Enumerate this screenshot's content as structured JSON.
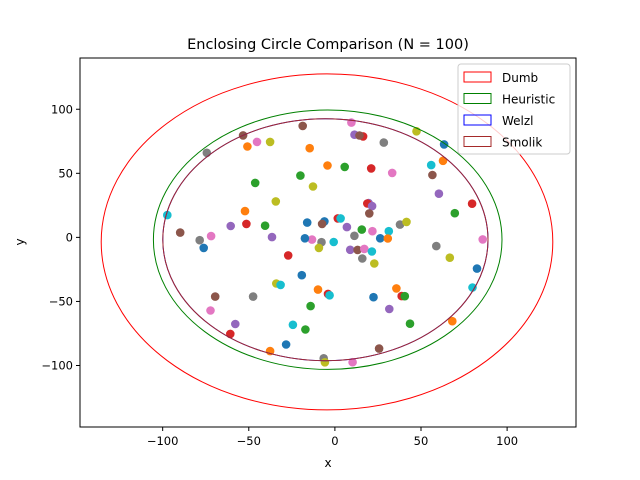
{
  "chart_data": {
    "type": "scatter",
    "title": "Enclosing Circle Comparison (N = 100)",
    "xlabel": "x",
    "ylabel": "y",
    "xlim": [
      -148,
      140
    ],
    "ylim": [
      -148,
      140
    ],
    "x_ticks": [
      -100,
      -50,
      0,
      50,
      100
    ],
    "x_tick_labels": [
      "−100",
      "−50",
      "0",
      "50",
      "100"
    ],
    "y_ticks": [
      -100,
      -50,
      0,
      50,
      100
    ],
    "y_tick_labels": [
      "−100",
      "−50",
      "0",
      "50",
      "100"
    ],
    "grid": false,
    "legend_position": "top-right",
    "circles": [
      {
        "name": "Dumb",
        "color": "#ff0000",
        "cx": -4.6,
        "cy": -3.5,
        "r": 131.1
      },
      {
        "name": "Heuristic",
        "color": "#008000",
        "cx": -4.2,
        "cy": -1.8,
        "r": 101.2
      },
      {
        "name": "Welzl",
        "color": "#0000ff",
        "cx": -5.5,
        "cy": -1.8,
        "r": 94.4
      },
      {
        "name": "Smolik",
        "color": "#a52a2a",
        "cx": -5.5,
        "cy": -1.8,
        "r": 94.4
      }
    ],
    "palette": [
      "#1f77b4",
      "#ff7f0e",
      "#2ca02c",
      "#d62728",
      "#9467bd",
      "#8c564b",
      "#e377c2",
      "#7f7f7f",
      "#bcbd22",
      "#17becf"
    ],
    "points": [
      [
        -6.1,
        12.5
      ],
      [
        -14.6,
        69.6
      ],
      [
        5.7,
        55.0
      ],
      [
        16.4,
        78.8
      ],
      [
        19.6,
        26.8
      ],
      [
        -53.3,
        79.6
      ],
      [
        -45.2,
        74.5
      ],
      [
        -74.4,
        66.0
      ],
      [
        -34.3,
        28.1
      ],
      [
        -97.3,
        17.4
      ],
      [
        -76.2,
        -8.2
      ],
      [
        -52.2,
        20.5
      ],
      [
        -40.5,
        9.1
      ],
      [
        -27.1,
        -14.1
      ],
      [
        -36.5,
        0.2
      ],
      [
        -18.7,
        87.0
      ],
      [
        9.6,
        89.6
      ],
      [
        28.4,
        74.0
      ],
      [
        47.4,
        82.8
      ],
      [
        55.9,
        56.4
      ],
      [
        63.4,
        72.6
      ],
      [
        62.8,
        59.8
      ],
      [
        69.6,
        18.9
      ],
      [
        79.7,
        26.3
      ],
      [
        60.4,
        34.1
      ],
      [
        56.6,
        48.7
      ],
      [
        85.8,
        -1.6
      ],
      [
        58.9,
        -6.8
      ],
      [
        66.7,
        -15.9
      ],
      [
        79.9,
        -39.1
      ],
      [
        82.5,
        -24.4
      ],
      [
        68.2,
        -65.4
      ],
      [
        43.6,
        -67.4
      ],
      [
        38.8,
        -45.8
      ],
      [
        31.6,
        -55.9
      ],
      [
        25.7,
        -86.8
      ],
      [
        10.3,
        -97.4
      ],
      [
        -6.5,
        -94.4
      ],
      [
        -5.8,
        -97.5
      ],
      [
        -24.4,
        -68.2
      ],
      [
        -28.3,
        -83.6
      ],
      [
        -37.6,
        -88.8
      ],
      [
        -17.1,
        -71.9
      ],
      [
        -60.7,
        -75.3
      ],
      [
        -57.8,
        -67.6
      ],
      [
        -69.5,
        -46.2
      ],
      [
        -72.2,
        -57.1
      ],
      [
        -47.5,
        -46.2
      ],
      [
        -34.0,
        -36.0
      ],
      [
        -31.5,
        -37.1
      ],
      [
        -19.2,
        -29.5
      ],
      [
        -9.8,
        -40.8
      ],
      [
        -14.1,
        -53.6
      ],
      [
        -4.0,
        -44.1
      ],
      [
        8.9,
        -9.7
      ],
      [
        13.2,
        -9.8
      ],
      [
        17.1,
        -9.0
      ],
      [
        15.9,
        -16.5
      ],
      [
        22.9,
        -20.4
      ],
      [
        21.5,
        -11.0
      ],
      [
        22.4,
        -46.7
      ],
      [
        35.7,
        -39.8
      ],
      [
        40.6,
        -45.9
      ],
      [
        1.7,
        14.8
      ],
      [
        7.0,
        8.0
      ],
      [
        -7.4,
        10.5
      ],
      [
        -13.3,
        -1.7
      ],
      [
        -7.8,
        -3.8
      ],
      [
        -9.3,
        -8.2
      ],
      [
        -0.7,
        -3.6
      ],
      [
        -16.1,
        11.5
      ],
      [
        -4.3,
        56.1
      ],
      [
        -20.0,
        48.2
      ],
      [
        21.1,
        53.8
      ],
      [
        11.4,
        80.1
      ],
      [
        14.3,
        79.5
      ],
      [
        33.3,
        50.3
      ],
      [
        37.8,
        10.0
      ],
      [
        41.6,
        12.1
      ],
      [
        31.3,
        4.8
      ],
      [
        26.3,
        -0.7
      ],
      [
        30.7,
        -0.9
      ],
      [
        15.6,
        6.1
      ],
      [
        18.8,
        26.4
      ],
      [
        21.6,
        24.4
      ],
      [
        20.0,
        18.7
      ],
      [
        21.8,
        4.8
      ],
      [
        11.3,
        1.2
      ],
      [
        -12.7,
        39.7
      ],
      [
        3.3,
        14.8
      ],
      [
        -17.4,
        -0.7
      ],
      [
        -50.8,
        70.9
      ],
      [
        -46.3,
        42.5
      ],
      [
        -51.4,
        10.5
      ],
      [
        -60.5,
        8.9
      ],
      [
        -89.8,
        3.7
      ],
      [
        -71.9,
        1.0
      ],
      [
        -78.5,
        -2.2
      ],
      [
        -37.6,
        74.5
      ],
      [
        -3.1,
        -45.2
      ]
    ]
  }
}
